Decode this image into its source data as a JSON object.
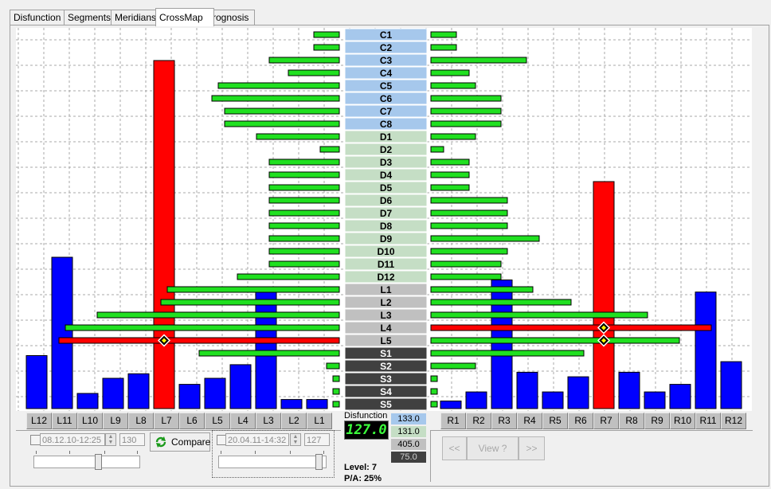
{
  "tabs": [
    {
      "label": "Disfunction",
      "active": false
    },
    {
      "label": "Segments",
      "active": false
    },
    {
      "label": "Meridians",
      "active": false
    },
    {
      "label": "CrossMap",
      "active": true
    },
    {
      "label": "Prognosis",
      "active": false
    }
  ],
  "colors": {
    "cervical": "#a6c8ec",
    "dorsal": "#c5dec5",
    "lumbar": "#c0c0c0",
    "sacral": "#404040",
    "blue_bar": "#0000ff",
    "red_bar": "#ff0000",
    "green_bar": "#20e020"
  },
  "chart_data": {
    "type": "bar",
    "segments": [
      "C1",
      "C2",
      "C3",
      "C4",
      "C5",
      "C6",
      "C7",
      "C8",
      "D1",
      "D2",
      "D3",
      "D4",
      "D5",
      "D6",
      "D7",
      "D8",
      "D9",
      "D10",
      "D11",
      "D12",
      "L1",
      "L2",
      "L3",
      "L4",
      "L5",
      "S1",
      "S2",
      "S3",
      "S4",
      "S5"
    ],
    "segment_groups": [
      "C",
      "C",
      "C",
      "C",
      "C",
      "C",
      "C",
      "C",
      "D",
      "D",
      "D",
      "D",
      "D",
      "D",
      "D",
      "D",
      "D",
      "D",
      "D",
      "D",
      "L",
      "L",
      "L",
      "L",
      "L",
      "S",
      "S",
      "S",
      "S",
      "S"
    ],
    "left_segment_values": [
      4,
      4,
      11,
      8,
      19,
      20,
      18,
      18,
      13,
      3,
      11,
      11,
      11,
      11,
      11,
      11,
      11,
      11,
      11,
      16,
      27,
      28,
      38,
      43,
      44,
      22,
      2,
      1,
      1,
      1
    ],
    "right_segment_values": [
      4,
      4,
      15,
      6,
      7,
      11,
      11,
      11,
      7,
      2,
      6,
      6,
      6,
      12,
      12,
      12,
      17,
      12,
      11,
      11,
      16,
      22,
      34,
      44,
      39,
      24,
      7,
      1,
      1,
      1
    ],
    "left_channels": [
      "L12",
      "L11",
      "L10",
      "L9",
      "L8",
      "L7",
      "L6",
      "L5",
      "L4",
      "L3",
      "L2",
      "L1"
    ],
    "left_channel_values": [
      35,
      100,
      10,
      20,
      23,
      230,
      16,
      20,
      29,
      78,
      6,
      6
    ],
    "right_channels": [
      "R1",
      "R2",
      "R3",
      "R4",
      "R5",
      "R6",
      "R7",
      "R8",
      "R9",
      "R10",
      "R11",
      "R12"
    ],
    "right_channel_values": [
      5,
      11,
      85,
      24,
      11,
      21,
      150,
      24,
      11,
      16,
      77,
      31
    ],
    "highlighted_left_channel": "L7",
    "highlighted_right_channel": "R7",
    "highlighted_segments": [
      "L4",
      "L5"
    ],
    "markers": [
      {
        "channel": "L7",
        "segment": "L5"
      },
      {
        "channel": "R7",
        "segment": "L4"
      },
      {
        "channel": "R7",
        "segment": "L5"
      }
    ]
  },
  "disfunction": {
    "title": "Disfunction",
    "lcd_value": "127.0",
    "values": [
      "133.0",
      "131.0",
      "405.0",
      "75.0"
    ],
    "level_text": "Level: 7",
    "pa_text": "P/A: 25%"
  },
  "left_panel": {
    "date": "08.12.10-12:25",
    "number": "130",
    "compare_label": "Compare",
    "slider_level": 0.62
  },
  "right_panel": {
    "date": "20.04.11-14:32",
    "number": "127",
    "slider_level": 0.97
  },
  "nav": {
    "prev_label": "<<",
    "view_label": "View ?",
    "next_label": ">>"
  }
}
